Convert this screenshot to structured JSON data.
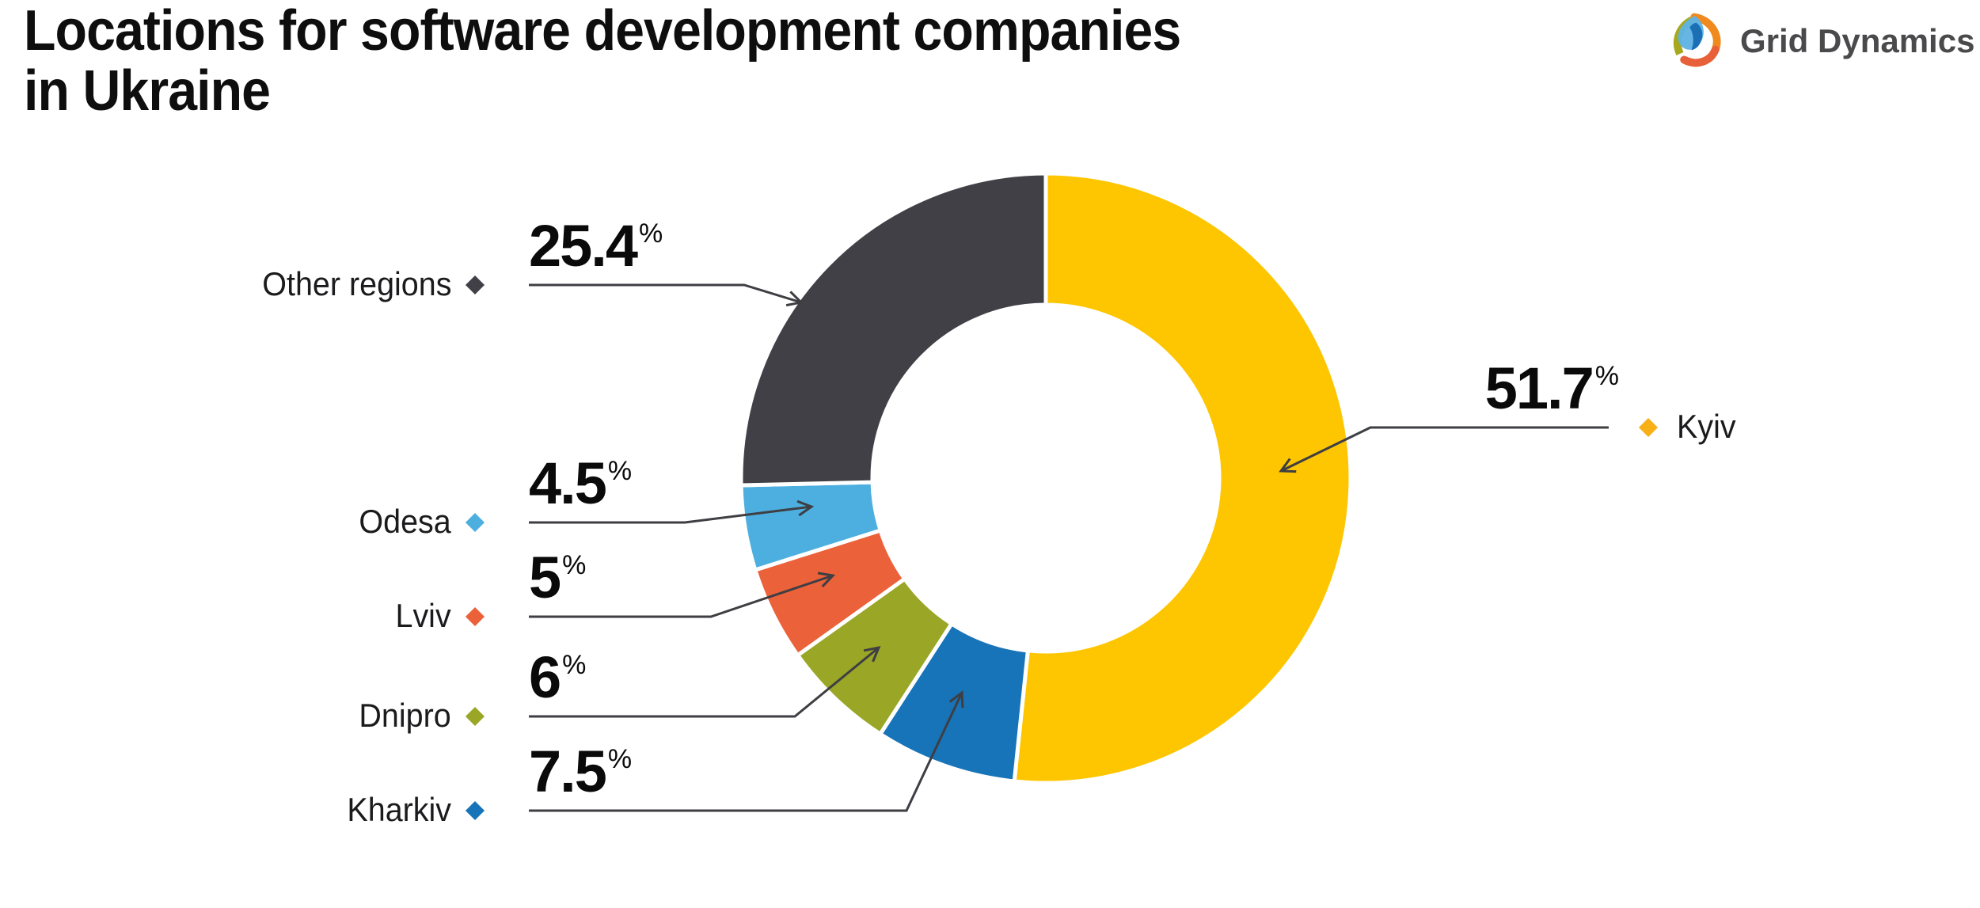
{
  "header": {
    "title_line1": "Locations for software development companies",
    "title_line2": "in Ukraine"
  },
  "brand": {
    "name": "Grid Dynamics"
  },
  "chart_data": {
    "type": "pie",
    "subtype": "donut",
    "title": "Locations for software development companies in Ukraine",
    "unit": "%",
    "start_angle_deg": 0,
    "direction": "clockwise",
    "inner_radius_ratio": 0.57,
    "legend_position": "callout-labels",
    "series": [
      {
        "label": "Kyiv",
        "value": 51.7,
        "display": "51.7",
        "color": "#FEC601",
        "diamond_color": "#F7B016"
      },
      {
        "label": "Kharkiv",
        "value": 7.5,
        "display": "7.5",
        "color": "#1874B8",
        "diamond_color": "#1874B8"
      },
      {
        "label": "Dnipro",
        "value": 6,
        "display": "6",
        "color": "#9AA626",
        "diamond_color": "#9AA626"
      },
      {
        "label": "Lviv",
        "value": 5,
        "display": "5",
        "color": "#EB613A",
        "diamond_color": "#EB613A"
      },
      {
        "label": "Odesa",
        "value": 4.5,
        "display": "4.5",
        "color": "#4DAFDF",
        "diamond_color": "#4DAFDF"
      },
      {
        "label": "Other regions",
        "value": 25.4,
        "display": "25.4",
        "color": "#414046",
        "diamond_color": "#414046"
      }
    ],
    "callout_line_color": "#3E3E43"
  }
}
